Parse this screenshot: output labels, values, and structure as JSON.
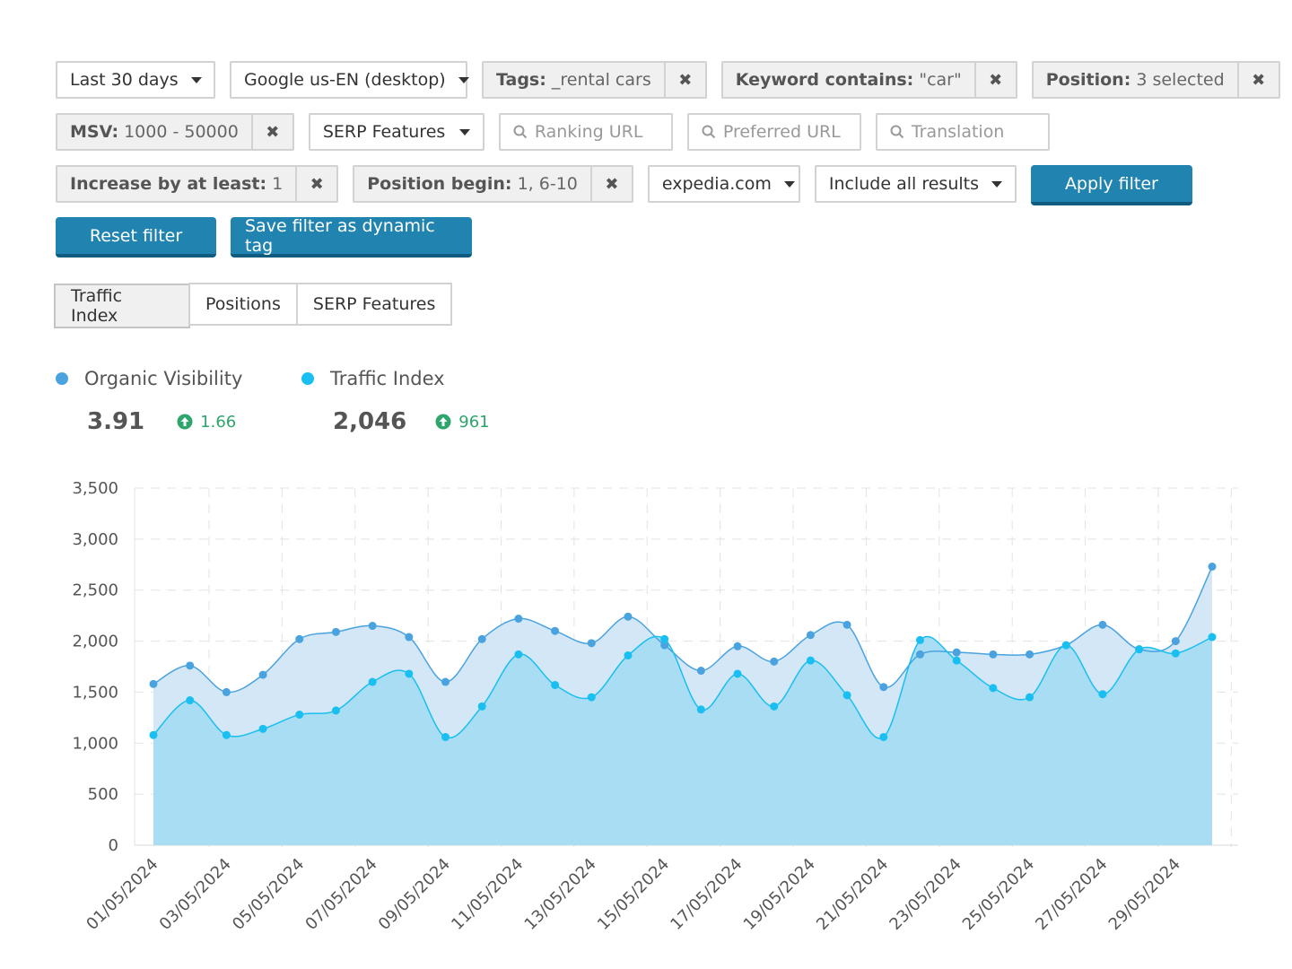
{
  "filters": {
    "row1": {
      "date_range": "Last 30 days",
      "search_engine": "Google us-EN (desktop)",
      "tags": {
        "key": "Tags:",
        "value": "_rental cars"
      },
      "keyword": {
        "key": "Keyword contains:",
        "value": "\"car\""
      },
      "position": {
        "key": "Position:",
        "value": "3 selected"
      }
    },
    "row2": {
      "msv": {
        "key": "MSV:",
        "value": "1000 - 50000"
      },
      "serp_features": "SERP Features",
      "ranking_url_placeholder": "Ranking URL",
      "preferred_url_placeholder": "Preferred URL",
      "translation_placeholder": "Translation"
    },
    "row3": {
      "increase": {
        "key": "Increase by at least:",
        "value": "1"
      },
      "position_begin": {
        "key": "Position begin:",
        "value": "1, 6-10"
      },
      "domain": "expedia.com",
      "results": "Include all results",
      "apply": "Apply filter"
    },
    "row4": {
      "reset": "Reset filter",
      "save": "Save filter as dynamic tag"
    },
    "close_glyph": "✖"
  },
  "tabs": [
    "Traffic Index",
    "Positions",
    "SERP Features"
  ],
  "active_tab": "Traffic Index",
  "summary": {
    "organic_visibility": {
      "label": "Organic Visibility",
      "value": "3.91",
      "delta": "1.66",
      "color": "#4aa3df"
    },
    "traffic_index": {
      "label": "Traffic Index",
      "value": "2,046",
      "delta": "961",
      "color": "#19bff0"
    }
  },
  "colors": {
    "accent": "#2183b0",
    "positive": "#2ea56a"
  },
  "chart_data": {
    "type": "area",
    "ylim": [
      0,
      3500
    ],
    "y_ticks": [
      "0",
      "500",
      "1,000",
      "1,500",
      "2,000",
      "2,500",
      "3,000",
      "3,500"
    ],
    "x": [
      "01/05/2024",
      "02/05/2024",
      "03/05/2024",
      "04/05/2024",
      "05/05/2024",
      "06/05/2024",
      "07/05/2024",
      "08/05/2024",
      "09/05/2024",
      "10/05/2024",
      "11/05/2024",
      "12/05/2024",
      "13/05/2024",
      "14/05/2024",
      "15/05/2024",
      "16/05/2024",
      "17/05/2024",
      "18/05/2024",
      "19/05/2024",
      "20/05/2024",
      "21/05/2024",
      "22/05/2024",
      "23/05/2024",
      "24/05/2024",
      "25/05/2024",
      "26/05/2024",
      "27/05/2024",
      "28/05/2024",
      "29/05/2024",
      "30/05/2024"
    ],
    "x_tick_labels": [
      "01/05/2024",
      "03/05/2024",
      "05/05/2024",
      "07/05/2024",
      "09/05/2024",
      "11/05/2024",
      "13/05/2024",
      "15/05/2024",
      "17/05/2024",
      "19/05/2024",
      "21/05/2024",
      "23/05/2024",
      "25/05/2024",
      "27/05/2024",
      "29/05/2024"
    ],
    "series": [
      {
        "name": "Organic Visibility",
        "values": [
          1580,
          1760,
          1500,
          1670,
          2020,
          2090,
          2150,
          2040,
          1600,
          2020,
          2220,
          2100,
          1980,
          2240,
          1960,
          1710,
          1950,
          1800,
          2060,
          2160,
          1550,
          1870,
          1890,
          1870,
          1870,
          1960,
          2160,
          1920,
          2000,
          2730
        ]
      },
      {
        "name": "Traffic Index",
        "values": [
          1080,
          1420,
          1080,
          1140,
          1280,
          1320,
          1600,
          1680,
          1060,
          1360,
          1870,
          1570,
          1450,
          1860,
          2020,
          1330,
          1680,
          1360,
          1810,
          1470,
          1060,
          2010,
          1810,
          1540,
          1450,
          1960,
          1480,
          1920,
          1880,
          2040
        ]
      }
    ],
    "grid": true
  }
}
